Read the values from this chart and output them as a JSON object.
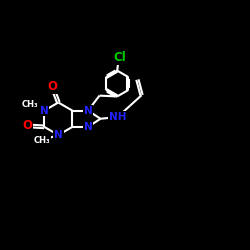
{
  "bg_color": "#000000",
  "bond_color": "#FFFFFF",
  "N_color": "#2222FF",
  "O_color": "#FF0000",
  "Cl_color": "#00CC00",
  "lw": 1.5,
  "fs": 7.5,
  "figsize": [
    2.5,
    2.5
  ],
  "dpi": 100,
  "xlim": [
    0,
    12
  ],
  "ylim": [
    0,
    10
  ]
}
